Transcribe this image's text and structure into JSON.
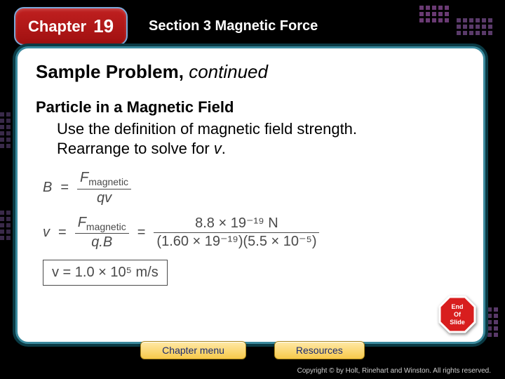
{
  "header": {
    "chapter_label": "Chapter",
    "chapter_number": "19",
    "section_prefix": "Section 3",
    "section_title": "Magnetic Force"
  },
  "panel": {
    "title_main": "Sample Problem,",
    "title_ital": "continued",
    "subheading": "Particle in a Magnetic Field",
    "body_line1": "Use the definition of magnetic field strength.",
    "body_line2_pre": "Rearrange to solve for ",
    "body_line2_var": "v",
    "body_line2_post": "."
  },
  "equations": {
    "eq1": {
      "lhs": "B",
      "frac_num": "F",
      "frac_num_sub": "magnetic",
      "frac_den": "qv"
    },
    "eq2": {
      "lhs": "v",
      "left_frac_num": "F",
      "left_frac_num_sub": "magnetic",
      "left_frac_den": "q.B",
      "right_frac_num": "8.8 × 19⁻¹⁹  N",
      "right_frac_den": "(1.60 × 19⁻¹⁹)(5.5 × 10⁻⁵)"
    },
    "eq3": {
      "text": "v = 1.0 × 10⁵  m/s"
    }
  },
  "stopsign": {
    "line1": "End",
    "line2": "Of",
    "line3": "Slide"
  },
  "buttons": {
    "chapter_menu": "Chapter menu",
    "resources": "Resources"
  },
  "footer": {
    "copyright": "Copyright © by Holt, Rinehart and Winston. All rights reserved."
  },
  "colors": {
    "panel_border": "#3b8a9e",
    "chapter_bg": "#b01818",
    "button_bg": "#f7c94a",
    "accent_purple": "#5a3a6a"
  }
}
